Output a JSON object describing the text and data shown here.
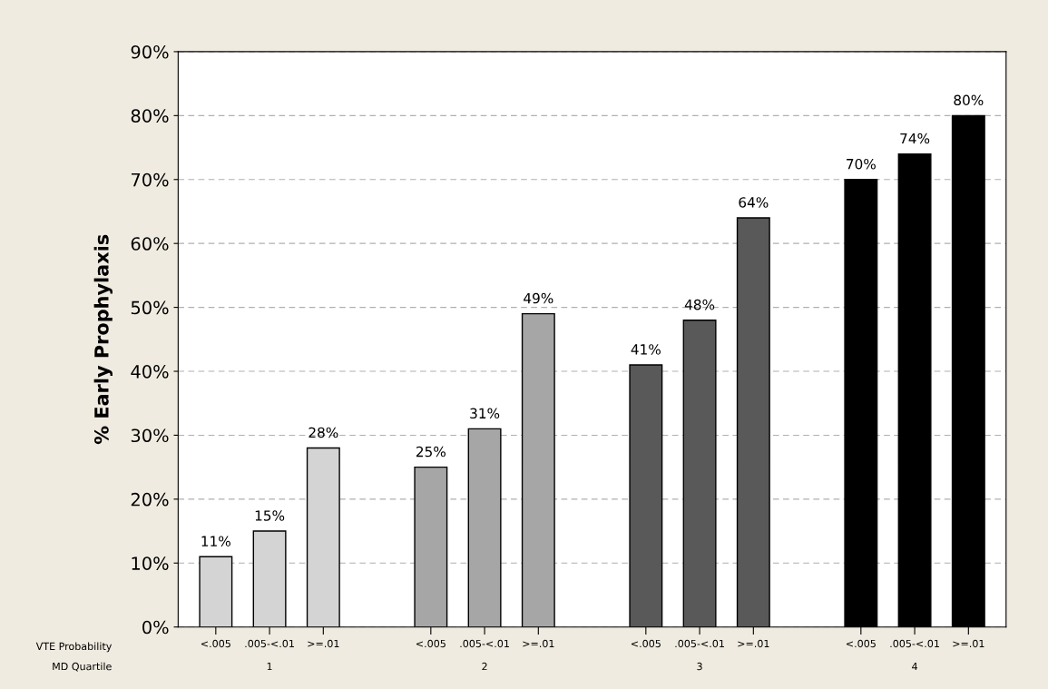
{
  "chart_data": {
    "type": "bar",
    "ylabel": "% Early Prophylaxis",
    "categories": [
      "<.005",
      ".005-<.01",
      ">=.01",
      null,
      "<.005",
      ".005-<.01",
      ">=.01",
      null,
      "<.005",
      ".005-<.01",
      ">=.01",
      null,
      "<.005",
      ".005-<.01",
      ">=.01"
    ],
    "values": [
      11,
      15,
      28,
      null,
      25,
      31,
      49,
      null,
      41,
      48,
      64,
      null,
      70,
      74,
      80
    ],
    "colors": [
      "#d4d4d4",
      "#d4d4d4",
      "#d4d4d4",
      null,
      "#a6a6a6",
      "#a6a6a6",
      "#a6a6a6",
      null,
      "#595959",
      "#595959",
      "#595959",
      null,
      "#000000",
      "#000000",
      "#000000"
    ],
    "value_labels": [
      "11%",
      "15%",
      "28%",
      null,
      "25%",
      "31%",
      "49%",
      null,
      "41%",
      "48%",
      "64%",
      null,
      "70%",
      "74%",
      "80%"
    ],
    "annotations": [
      "VTE Probability",
      "MD Quartile",
      "1",
      "2",
      "3",
      "4"
    ],
    "ylim": [
      0,
      90
    ],
    "yticks": [
      {
        "value": 0,
        "label": "0%"
      },
      {
        "value": 10,
        "label": "10%"
      },
      {
        "value": 20,
        "label": "20%"
      },
      {
        "value": 30,
        "label": "30%"
      },
      {
        "value": 40,
        "label": "40%"
      },
      {
        "value": 50,
        "label": "50%"
      },
      {
        "value": 60,
        "label": "60%"
      },
      {
        "value": 70,
        "label": "70%"
      },
      {
        "value": 80,
        "label": "80%"
      },
      {
        "value": 90,
        "label": "90%"
      }
    ],
    "grid": "y"
  }
}
